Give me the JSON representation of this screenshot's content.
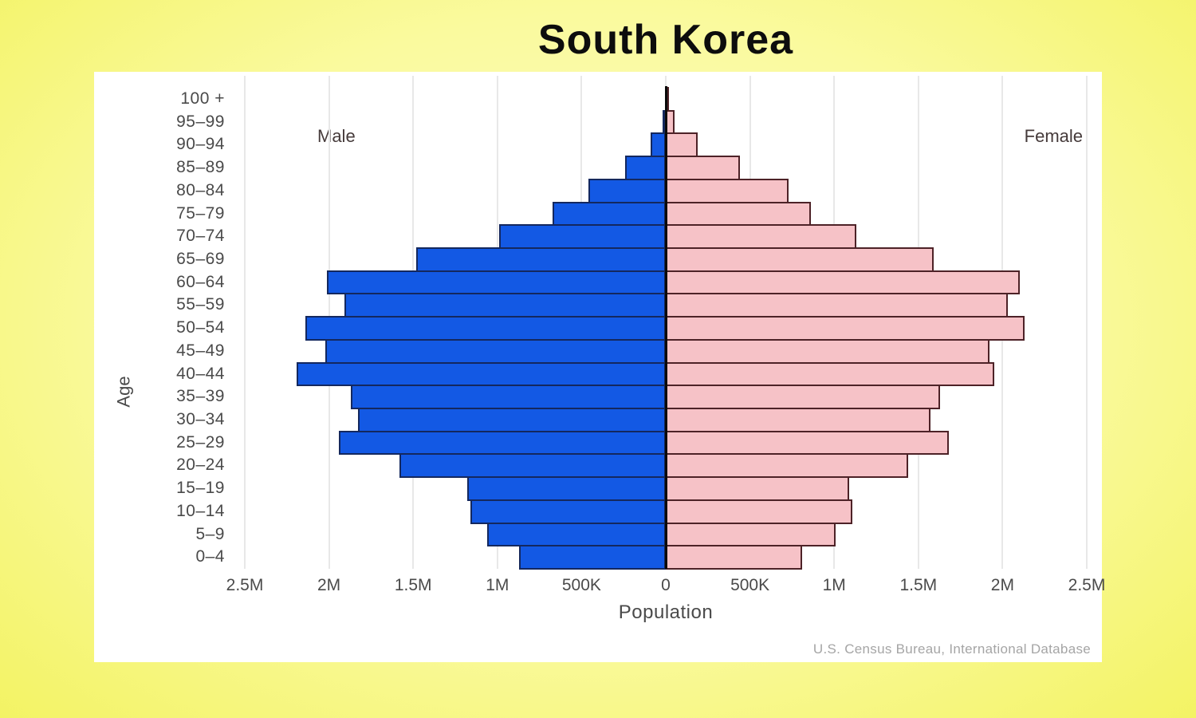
{
  "page": {
    "background_color_center": "#FDFDC8",
    "background_color_edge": "#F3F364",
    "panel_color": "#FFFFFF"
  },
  "chart_data": {
    "type": "bar",
    "subtype": "population-pyramid",
    "title": "South Korea",
    "xlabel": "Population",
    "ylabel": "Age",
    "source": "U.S. Census Bureau, International Database",
    "side_labels": {
      "left": "Male",
      "right": "Female"
    },
    "grid": true,
    "gridline_color": "#E8E8E8",
    "x_axis": {
      "max_each_side": 2500000,
      "tick_interval": 500000,
      "tick_labels": [
        "2.5M",
        "2M",
        "1.5M",
        "1M",
        "500K",
        "0",
        "500K",
        "1M",
        "1.5M",
        "2M",
        "2.5M"
      ]
    },
    "age_groups": [
      "100 +",
      "95–99",
      "90–94",
      "85–89",
      "80–84",
      "75–79",
      "70–74",
      "65–69",
      "60–64",
      "55–59",
      "50–54",
      "45–49",
      "40–44",
      "35–39",
      "30–34",
      "25–29",
      "20–24",
      "15–19",
      "10–14",
      "5–9",
      "0–4"
    ],
    "series": [
      {
        "name": "Male",
        "side": "left",
        "fill_color": "#1359E4",
        "border_color": "#14285E",
        "values": [
          5000,
          20000,
          90000,
          240000,
          460000,
          670000,
          990000,
          1480000,
          2010000,
          1910000,
          2140000,
          2020000,
          2190000,
          1870000,
          1830000,
          1940000,
          1580000,
          1180000,
          1160000,
          1060000,
          870000
        ]
      },
      {
        "name": "Female",
        "side": "right",
        "fill_color": "#F6C2C7",
        "border_color": "#4D2227",
        "values": [
          20000,
          50000,
          190000,
          440000,
          730000,
          860000,
          1130000,
          1590000,
          2100000,
          2030000,
          2130000,
          1920000,
          1950000,
          1630000,
          1570000,
          1680000,
          1440000,
          1090000,
          1110000,
          1010000,
          810000
        ]
      }
    ]
  }
}
